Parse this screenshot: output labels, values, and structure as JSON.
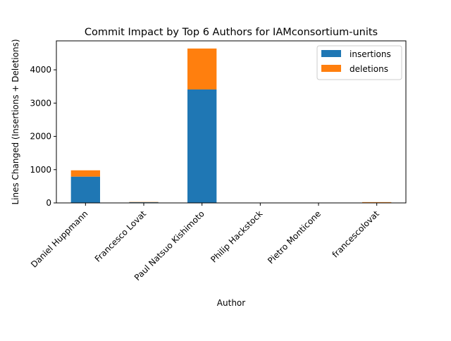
{
  "chart_data": {
    "type": "bar",
    "stacked": true,
    "title": "Commit Impact by Top 6 Authors for IAMconsortium-units",
    "xlabel": "Author",
    "ylabel": "Lines Changed (Insertions + Deletions)",
    "categories": [
      "Daniel Huppmann",
      "Francesco Lovat",
      "Paul Natsuo Kishimoto",
      "Philip Hackstock",
      "Pietro Monticone",
      "francescolovat"
    ],
    "series": [
      {
        "name": "insertions",
        "color": "#1f77b4",
        "values": [
          790,
          20,
          3410,
          3,
          2,
          12
        ]
      },
      {
        "name": "deletions",
        "color": "#ff7f0e",
        "values": [
          190,
          8,
          1230,
          2,
          1,
          12
        ]
      }
    ],
    "ylim": [
      0,
      4870
    ],
    "yticks": [
      0,
      1000,
      2000,
      3000,
      4000
    ],
    "legend_position": "top-right",
    "grid": false
  }
}
